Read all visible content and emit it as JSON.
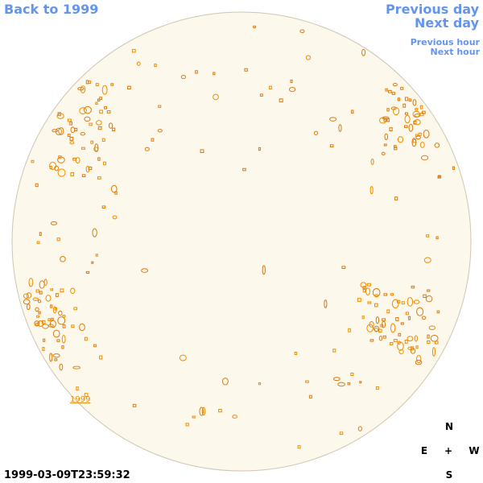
{
  "links": {
    "back": "Back to 1999",
    "previous_day": "Previous day",
    "next_day": "Next day",
    "previous_hour": "Previous hour",
    "next_hour": "Next hour"
  },
  "disk_label": "1999",
  "compass": {
    "north": "N",
    "east": "E",
    "center": "+",
    "west": "W",
    "south": "S"
  },
  "timestamp": "1999-03-09T23:59:32"
}
